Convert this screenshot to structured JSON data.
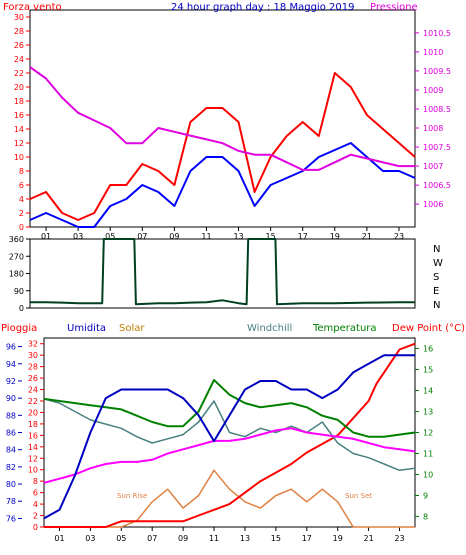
{
  "chart_data": [
    {
      "type": "line",
      "title": "24 hour graph day : 18 Maggio 2019",
      "left_axis_label": "Forza vento",
      "right_axis_label": "Pressione",
      "x_ticks": [
        "01",
        "03",
        "05",
        "07",
        "09",
        "11",
        "13",
        "15",
        "17",
        "19",
        "21",
        "23"
      ],
      "ylim_left": [
        0,
        31
      ],
      "ylim_right": [
        1005.4,
        1011.1
      ],
      "y_ticks_left": [
        0,
        2,
        4,
        6,
        8,
        10,
        12,
        14,
        16,
        18,
        20,
        22,
        24,
        26,
        28,
        30
      ],
      "y_ticks_right": [
        1006,
        1006.5,
        1007,
        1007.5,
        1008,
        1008.5,
        1009,
        1009.5,
        1010,
        1010.5
      ],
      "colors": {
        "gust": "#ff0000",
        "wind": "#0000ff",
        "pressure": "#e000e0",
        "left_axis": "#ff0000",
        "right_axis": "#e000e0",
        "title": "#0000c0"
      },
      "series": [
        {
          "key": "gust",
          "x": [
            0,
            1,
            2,
            3,
            4,
            5,
            6,
            7,
            8,
            9,
            10,
            11,
            12,
            13,
            14,
            15,
            16,
            17,
            18,
            19,
            20,
            21,
            22,
            23,
            24
          ],
          "values": [
            4,
            5,
            2,
            1,
            2,
            6,
            6,
            9,
            8,
            6,
            15,
            17,
            17,
            15,
            5,
            10,
            13,
            15,
            13,
            22,
            20,
            16,
            14,
            12,
            10
          ]
        },
        {
          "key": "wind",
          "x": [
            0,
            1,
            2,
            3,
            4,
            5,
            6,
            7,
            8,
            9,
            10,
            11,
            12,
            13,
            14,
            15,
            16,
            17,
            18,
            19,
            20,
            21,
            22,
            23,
            24
          ],
          "values": [
            1,
            2,
            1,
            0,
            0,
            3,
            4,
            6,
            5,
            3,
            8,
            10,
            10,
            8,
            3,
            6,
            7,
            8,
            10,
            11,
            12,
            10,
            8,
            8,
            7
          ]
        },
        {
          "key": "pressure",
          "x": [
            0,
            1,
            2,
            3,
            4,
            5,
            6,
            7,
            8,
            9,
            10,
            11,
            12,
            13,
            14,
            15,
            16,
            17,
            18,
            19,
            20,
            21,
            22,
            23,
            24
          ],
          "values": [
            1009.6,
            1009.3,
            1008.8,
            1008.4,
            1008.2,
            1008.0,
            1007.6,
            1007.6,
            1008.0,
            1007.9,
            1007.8,
            1007.7,
            1007.6,
            1007.4,
            1007.3,
            1007.3,
            1007.1,
            1006.9,
            1006.9,
            1007.1,
            1007.3,
            1007.2,
            1007.1,
            1007.0,
            1007.0
          ]
        }
      ]
    },
    {
      "type": "line",
      "title": "",
      "right_axis_label": "N W S E N",
      "right_axis_letters": [
        "N",
        "W",
        "S",
        "E",
        "N"
      ],
      "x_ticks": [
        "01",
        "03",
        "05",
        "07",
        "09",
        "11",
        "13",
        "15",
        "17",
        "19",
        "21",
        "23"
      ],
      "ylim": [
        0,
        360
      ],
      "y_ticks": [
        0,
        90,
        180,
        270,
        360
      ],
      "colors": {
        "direction": "#004020"
      },
      "series": [
        {
          "key": "direction",
          "x": [
            0,
            1,
            2,
            3,
            4,
            4.5,
            4.6,
            6.5,
            6.6,
            8,
            9,
            10,
            11,
            12,
            13,
            13.5,
            13.6,
            15.3,
            15.4,
            17,
            19,
            21,
            23,
            24
          ],
          "values": [
            30,
            30,
            28,
            25,
            25,
            25,
            360,
            360,
            20,
            25,
            25,
            28,
            30,
            40,
            25,
            20,
            360,
            360,
            20,
            25,
            25,
            28,
            30,
            30
          ]
        }
      ]
    },
    {
      "type": "line",
      "title": "",
      "legend": [
        "Pioggia",
        "Umidita",
        "Solar",
        "Windchill",
        "Temperatura",
        "Dew Point (°C)"
      ],
      "left_axis_values": [
        76,
        78,
        80,
        82,
        84,
        86,
        88,
        90,
        92,
        94,
        96
      ],
      "rain_axis_values": [
        0,
        2,
        4,
        6,
        8,
        10,
        12,
        14,
        16,
        18,
        20,
        22,
        24,
        26,
        28,
        30,
        32
      ],
      "right_axis_values": [
        8,
        9,
        10,
        11,
        12,
        13,
        14,
        15,
        16
      ],
      "x_ticks": [
        "01",
        "03",
        "05",
        "07",
        "09",
        "11",
        "13",
        "15",
        "17",
        "19",
        "21",
        "23"
      ],
      "annotations": [
        "Sun Rise",
        "Sun Set"
      ],
      "x_tick_notes": [
        "Sun Ris",
        "Sun Set"
      ],
      "colors": {
        "rain": "#ff0000",
        "humidity": "#0000c0",
        "solar": "#e08040",
        "windchill": "#4a8080",
        "temperature": "#008000",
        "dew": "#ff00ff"
      },
      "series": [
        {
          "key": "humidity",
          "x": [
            0,
            1,
            2,
            3,
            4,
            5,
            6,
            7,
            8,
            9,
            10,
            11,
            12,
            13,
            14,
            15,
            16,
            17,
            18,
            19,
            20,
            21,
            22,
            23,
            24
          ],
          "values": [
            76,
            77,
            81,
            86,
            90,
            91,
            91,
            91,
            91,
            90,
            88,
            85,
            88,
            91,
            92,
            92,
            91,
            91,
            90,
            91,
            93,
            94,
            95,
            95,
            95
          ]
        },
        {
          "key": "temperature",
          "x": [
            0,
            1,
            2,
            3,
            4,
            5,
            6,
            7,
            8,
            9,
            10,
            11,
            12,
            13,
            14,
            15,
            16,
            17,
            18,
            19,
            20,
            21,
            22,
            23,
            24
          ],
          "values": [
            13.6,
            13.5,
            13.4,
            13.3,
            13.2,
            13.1,
            12.8,
            12.5,
            12.3,
            12.3,
            13.0,
            14.5,
            13.8,
            13.4,
            13.2,
            13.3,
            13.4,
            13.2,
            12.8,
            12.6,
            12.0,
            11.8,
            11.8,
            11.9,
            12.0
          ]
        },
        {
          "key": "windchill",
          "x": [
            0,
            1,
            2,
            3,
            4,
            5,
            6,
            7,
            8,
            9,
            10,
            11,
            12,
            13,
            14,
            15,
            16,
            17,
            18,
            19,
            20,
            21,
            22,
            23,
            24
          ],
          "values": [
            13.6,
            13.4,
            13.0,
            12.6,
            12.4,
            12.2,
            11.8,
            11.5,
            11.7,
            11.9,
            12.5,
            13.5,
            12.0,
            11.8,
            12.2,
            12.0,
            12.3,
            12.0,
            12.5,
            11.5,
            11.0,
            10.8,
            10.5,
            10.2,
            10.3
          ]
        },
        {
          "key": "dew",
          "x": [
            0,
            1,
            2,
            3,
            4,
            5,
            6,
            7,
            8,
            9,
            10,
            11,
            12,
            13,
            14,
            15,
            16,
            17,
            18,
            19,
            20,
            21,
            22,
            23,
            24
          ],
          "values": [
            9.6,
            9.8,
            10.0,
            10.3,
            10.5,
            10.6,
            10.6,
            10.7,
            11.0,
            11.2,
            11.4,
            11.6,
            11.6,
            11.7,
            11.9,
            12.1,
            12.2,
            12.0,
            11.9,
            11.8,
            11.7,
            11.5,
            11.3,
            11.2,
            11.1
          ]
        },
        {
          "key": "solar",
          "x": [
            0,
            5,
            6,
            7,
            8,
            9,
            10,
            11,
            12,
            13,
            14,
            15,
            16,
            17,
            18,
            19,
            20,
            24
          ],
          "values": [
            0,
            0,
            1,
            4,
            6,
            3,
            5,
            9,
            6,
            4,
            3,
            5,
            6,
            4,
            6,
            4,
            0,
            0
          ]
        },
        {
          "key": "rain",
          "x": [
            0,
            4,
            4.5,
            5,
            9,
            10,
            11,
            12,
            13,
            14,
            16,
            17,
            19,
            20,
            21,
            21.5,
            22,
            22.5,
            23,
            24
          ],
          "values": [
            0,
            0,
            0.5,
            1,
            1,
            2,
            3,
            4,
            6,
            8,
            11,
            13,
            16,
            19,
            22,
            25,
            27,
            29,
            31,
            32
          ]
        }
      ]
    }
  ]
}
